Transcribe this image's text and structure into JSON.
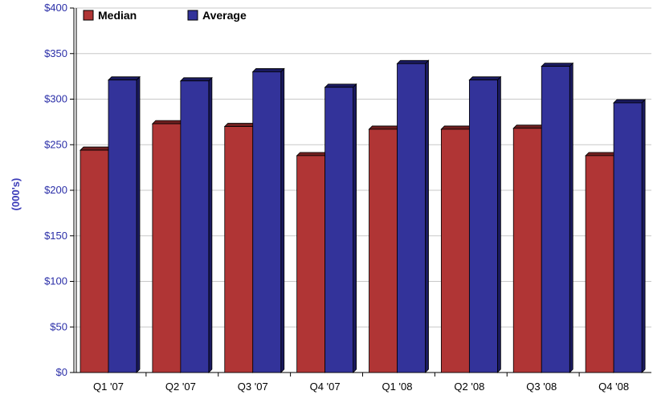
{
  "chart_data": {
    "type": "bar",
    "title": "",
    "xlabel": "",
    "ylabel": "(000's)",
    "categories": [
      "Q1 '07",
      "Q2 '07",
      "Q3 '07",
      "Q4 '07",
      "Q1 '08",
      "Q2 '08",
      "Q3 '08",
      "Q4 '08"
    ],
    "series": [
      {
        "name": "Median",
        "color": "#b03535",
        "values": [
          244,
          273,
          270,
          238,
          267,
          267,
          268,
          238
        ]
      },
      {
        "name": "Average",
        "color": "#33339a",
        "values": [
          321,
          320,
          330,
          313,
          339,
          321,
          336,
          296
        ]
      }
    ],
    "ylim": [
      0,
      400
    ],
    "yticks": [
      0,
      50,
      100,
      150,
      200,
      250,
      300,
      350,
      400
    ],
    "ytick_labels": [
      "$0",
      "$50",
      "$100",
      "$150",
      "$200",
      "$250",
      "$300",
      "$350",
      "$400"
    ],
    "grid": true,
    "legend_position": "top-left"
  }
}
